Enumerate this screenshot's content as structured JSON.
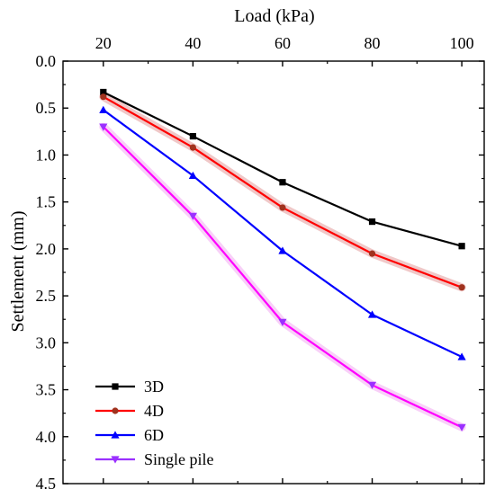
{
  "chart_data": {
    "type": "line",
    "xlabel": "Load (kPa)",
    "ylabel": "Settlement (mm)",
    "x": [
      20,
      40,
      60,
      80,
      100
    ],
    "xticks": [
      "20",
      "40",
      "60",
      "80",
      "100"
    ],
    "yticks": [
      "0.0",
      "0.5",
      "1.0",
      "1.5",
      "2.0",
      "2.5",
      "3.0",
      "3.5",
      "4.0",
      "4.5"
    ],
    "xlim": [
      11,
      105
    ],
    "ylim": [
      0,
      4.5
    ],
    "y_inverted": true,
    "x_axis_position": "top",
    "grid": false,
    "legend_position": "bottom-left",
    "series": [
      {
        "name": "3D",
        "values": [
          0.33,
          0.8,
          1.29,
          1.71,
          1.97
        ],
        "color": "#000000",
        "marker": "square",
        "shadow": null
      },
      {
        "name": "4D",
        "values": [
          0.38,
          0.92,
          1.56,
          2.05,
          2.41
        ],
        "color": "#ff0000",
        "marker": "circle",
        "marker_color": "#a0321e",
        "shadow": "#f0c8c8"
      },
      {
        "name": "6D",
        "values": [
          0.52,
          1.22,
          2.02,
          2.7,
          3.15
        ],
        "color": "#0000ff",
        "marker": "triangle-up",
        "shadow": null
      },
      {
        "name": "Single pile",
        "values": [
          0.7,
          1.65,
          2.78,
          3.45,
          3.9
        ],
        "color": "#ff00ff",
        "legend_color": "#9b30ff",
        "marker": "triangle-down",
        "marker_color": "#9b30ff",
        "shadow": "#f8d0f8"
      }
    ]
  }
}
